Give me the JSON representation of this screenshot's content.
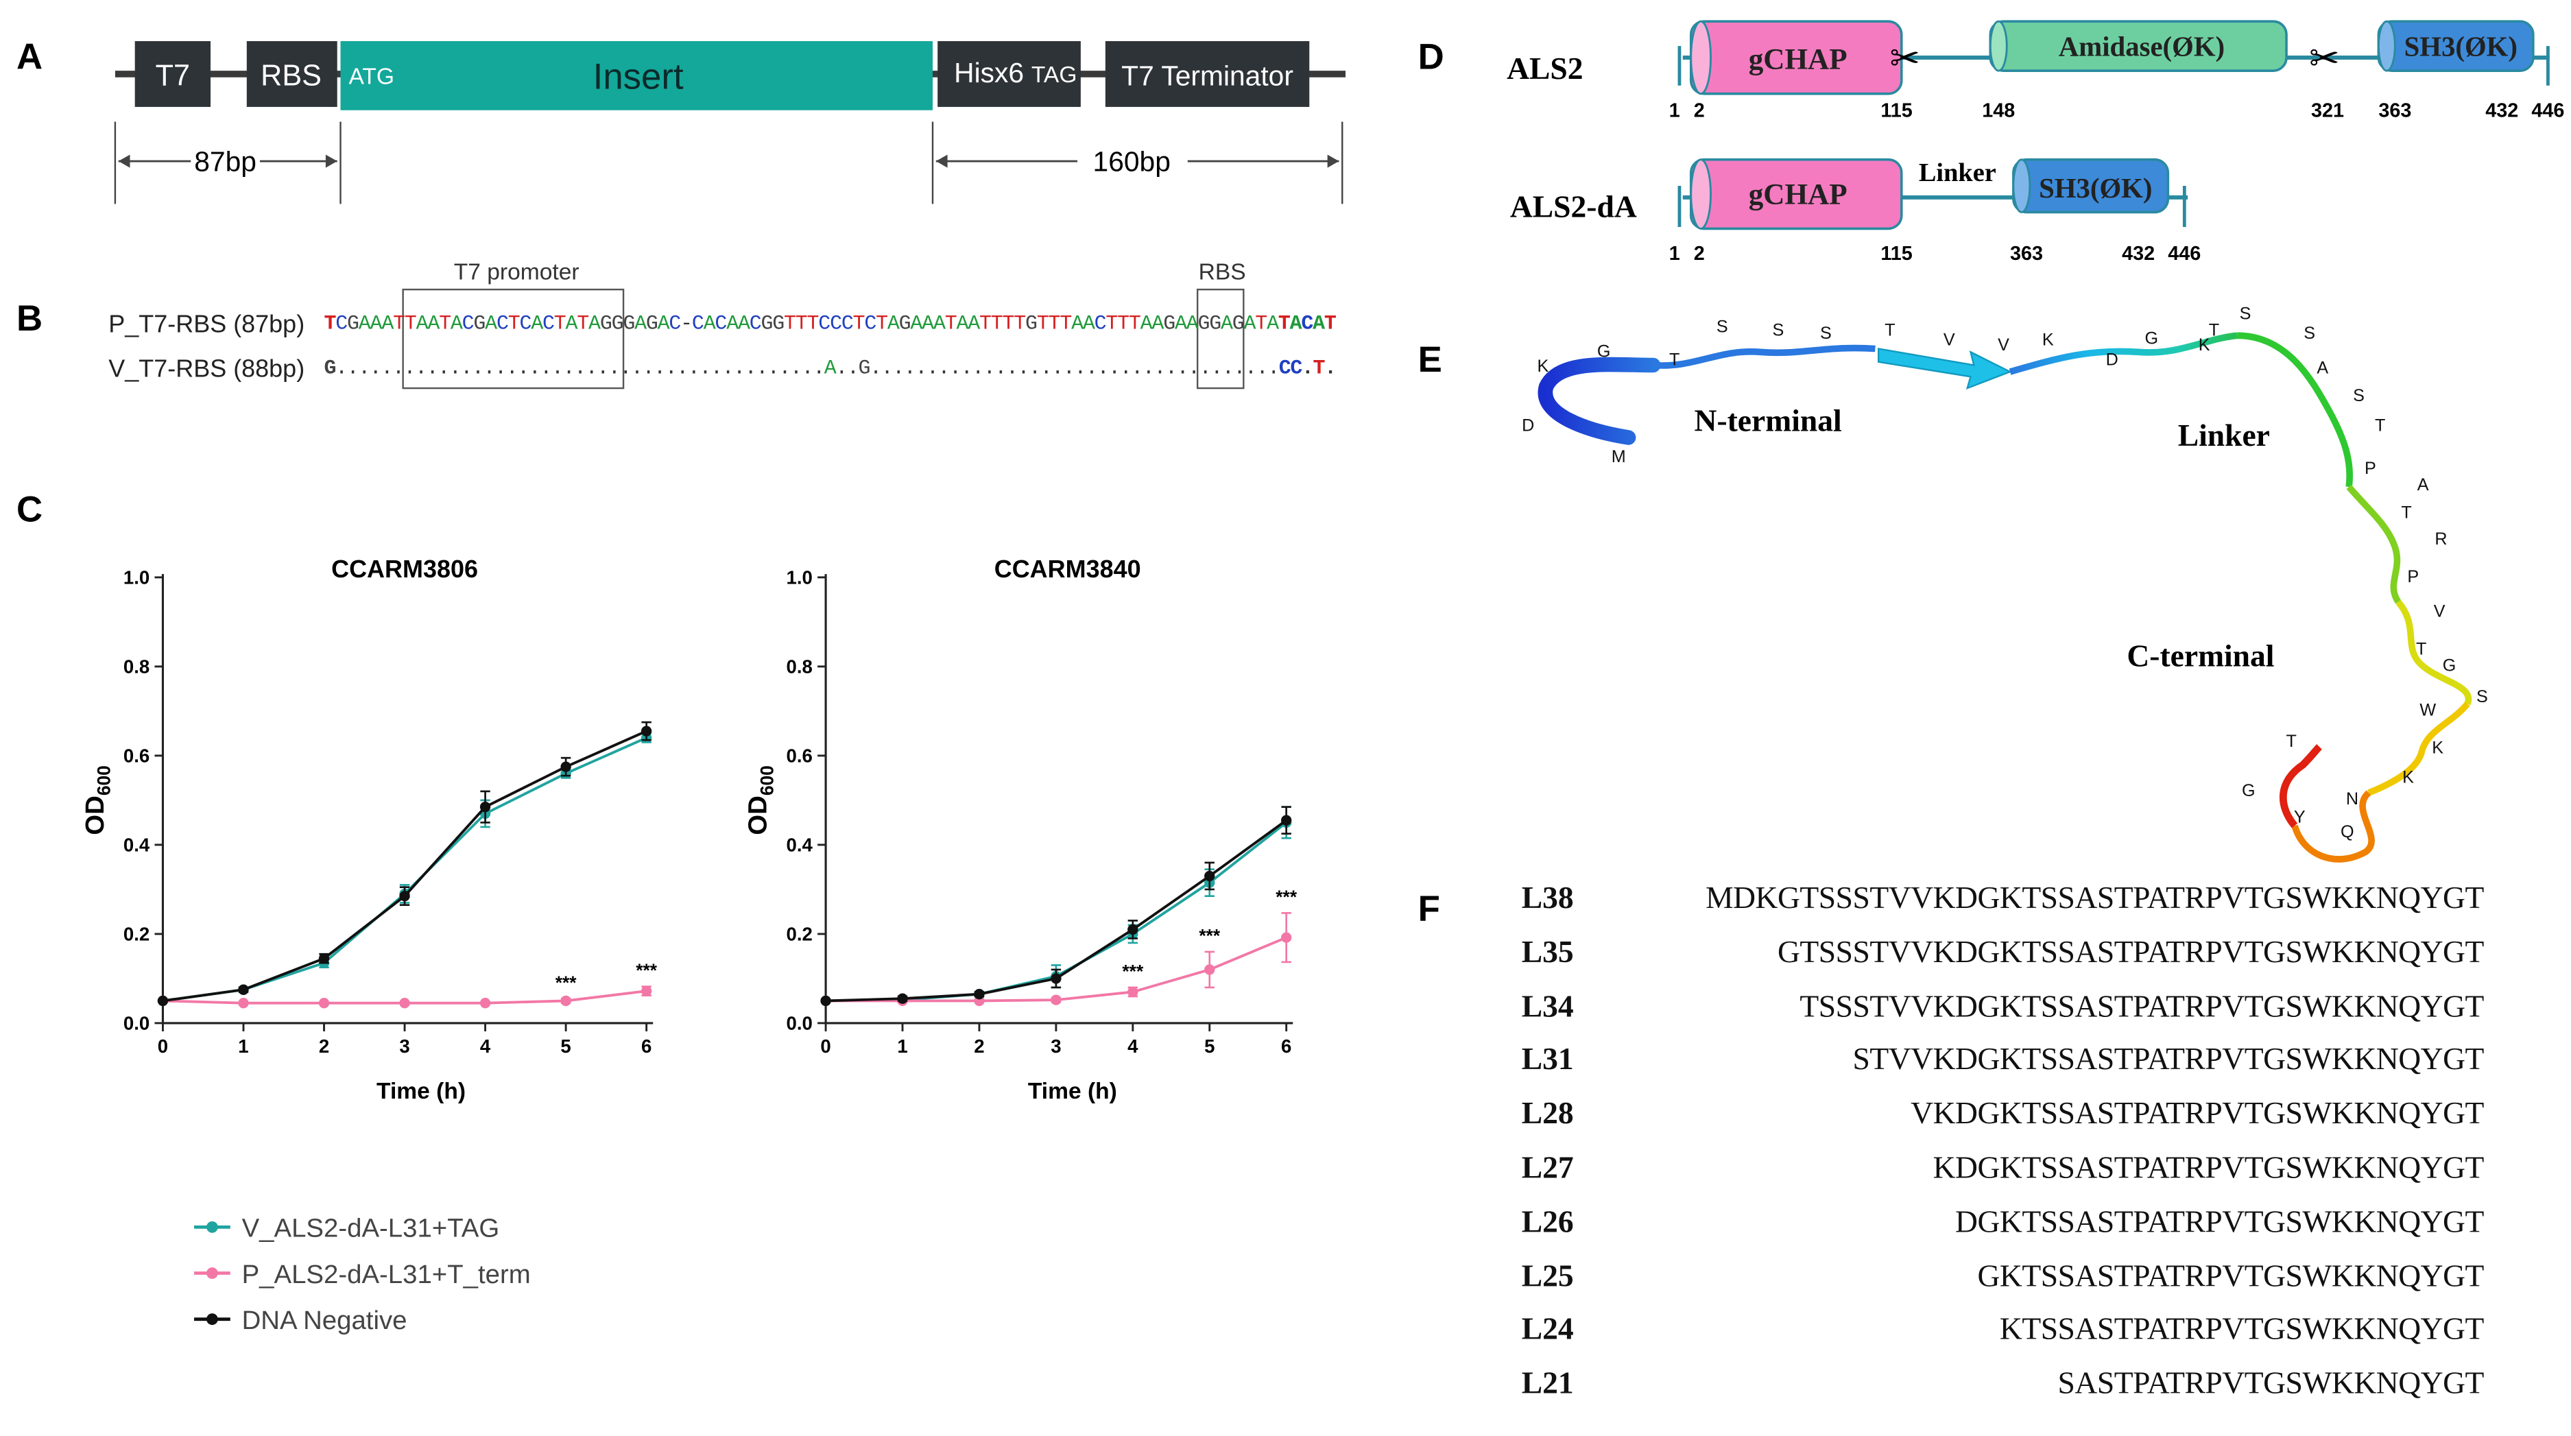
{
  "panels": {
    "A": {
      "label": "A",
      "segments": [
        "T7",
        "RBS",
        "Insert",
        "Hisx6",
        "T7 Terminator"
      ],
      "start_codon": "ATG",
      "stop_codon": "TAG",
      "dim_left": "87bp",
      "dim_right": "160bp"
    },
    "B": {
      "label": "B",
      "row1_name": "P_T7-RBS (87bp)",
      "row2_name": "V_T7-RBS (88bp)",
      "box1_label": "T7 promoter",
      "box2_label": "RBS",
      "row1_seq": "TCGAAATTAATACGACTCACTATAGGGAGAC-CACAACGGTTTCCCTCTAGAAATAATTTTGTTTAACTTTAAGAAGGAGATATACAT",
      "row2_seq": "G...........................................A..G....................................CC.T."
    },
    "C": {
      "label": "C",
      "legend": [
        {
          "name": "V_ALS2-dA-L31+TAG",
          "color": "#20a4a0"
        },
        {
          "name": "P_ALS2-dA-L31+T_term",
          "color": "#f277a6"
        },
        {
          "name": "DNA Negative",
          "color": "#111111"
        }
      ]
    },
    "D": {
      "label": "D",
      "row1_name": "ALS2",
      "row2_name": "ALS2-dA",
      "domains": {
        "gchap": "gCHAP",
        "amidase": "Amidase(ØK)",
        "sh3": "SH3(ØK)",
        "linker": "Linker"
      },
      "row1_positions": [
        "1",
        "2",
        "115",
        "148",
        "321",
        "363",
        "432",
        "446"
      ],
      "row2_positions": [
        "1",
        "2",
        "115",
        "363",
        "432",
        "446"
      ]
    },
    "E": {
      "label": "E",
      "n_terminal": "N-terminal",
      "linker": "Linker",
      "c_terminal": "C-terminal",
      "residues": [
        "M",
        "D",
        "K",
        "G",
        "T",
        "S",
        "S",
        "S",
        "T",
        "V",
        "V",
        "K",
        "D",
        "G",
        "K",
        "T",
        "S",
        "S",
        "A",
        "S",
        "T",
        "P",
        "A",
        "T",
        "R",
        "P",
        "V",
        "T",
        "G",
        "S",
        "W",
        "K",
        "K",
        "N",
        "Q",
        "Y",
        "G",
        "T"
      ]
    },
    "F": {
      "label": "F",
      "rows": [
        {
          "name": "L38",
          "seq": "MDKGTSSSTVVKDGKTSSASTPATRPVTGSWKKNQYGT"
        },
        {
          "name": "L35",
          "seq": "GTSSSTVVKDGKTSSASTPATRPVTGSWKKNQYGT"
        },
        {
          "name": "L34",
          "seq": "TSSSTVVKDGKTSSASTPATRPVTGSWKKNQYGT"
        },
        {
          "name": "L31",
          "seq": "STVVKDGKTSSASTPATRPVTGSWKKNQYGT"
        },
        {
          "name": "L28",
          "seq": "VKDGKTSSASTPATRPVTGSWKKNQYGT"
        },
        {
          "name": "L27",
          "seq": "KDGKTSSASTPATRPVTGSWKKNQYGT"
        },
        {
          "name": "L26",
          "seq": "DGKTSSASTPATRPVTGSWKKNQYGT"
        },
        {
          "name": "L25",
          "seq": "GKTSSASTPATRPVTGSWKKNQYGT"
        },
        {
          "name": "L24",
          "seq": "KTSSASTPATRPVTGSWKKNQYGT"
        },
        {
          "name": "L21",
          "seq": "SASTPATRPVTGSWKKNQYGT"
        }
      ]
    }
  },
  "chart_data": [
    {
      "type": "line",
      "title": "CCARM3806",
      "xlabel": "Time (h)",
      "ylabel": "OD600",
      "x": [
        0,
        1,
        2,
        3,
        4,
        5,
        6
      ],
      "xlim": [
        0,
        6
      ],
      "ylim": [
        0,
        1.0
      ],
      "yticks": [
        "0.0",
        "0.2",
        "0.4",
        "0.6",
        "0.8",
        "1.0"
      ],
      "series": [
        {
          "name": "V_ALS2-dA-L31+TAG",
          "color": "#20a4a0",
          "values": [
            0.05,
            0.075,
            0.135,
            0.29,
            0.47,
            0.56,
            0.64
          ],
          "err": [
            0,
            0.005,
            0.01,
            0.02,
            0.03,
            0.01,
            0.01
          ]
        },
        {
          "name": "P_ALS2-dA-L31+T_term",
          "color": "#f277a6",
          "values": [
            0.05,
            0.045,
            0.045,
            0.045,
            0.045,
            0.05,
            0.072
          ],
          "err": [
            0,
            0,
            0,
            0,
            0,
            0.005,
            0.01
          ]
        },
        {
          "name": "DNA Negative",
          "color": "#111111",
          "values": [
            0.05,
            0.075,
            0.145,
            0.285,
            0.485,
            0.575,
            0.655
          ],
          "err": [
            0,
            0.005,
            0.01,
            0.02,
            0.035,
            0.02,
            0.02
          ]
        }
      ],
      "annotations": [
        {
          "x": 5,
          "text": "***"
        },
        {
          "x": 6,
          "text": "***"
        }
      ]
    },
    {
      "type": "line",
      "title": "CCARM3840",
      "xlabel": "Time (h)",
      "ylabel": "OD600",
      "x": [
        0,
        1,
        2,
        3,
        4,
        5,
        6
      ],
      "xlim": [
        0,
        6
      ],
      "ylim": [
        0,
        1.0
      ],
      "yticks": [
        "0.0",
        "0.2",
        "0.4",
        "0.6",
        "0.8",
        "1.0"
      ],
      "series": [
        {
          "name": "V_ALS2-dA-L31+TAG",
          "color": "#20a4a0",
          "values": [
            0.05,
            0.052,
            0.065,
            0.105,
            0.2,
            0.315,
            0.45
          ],
          "err": [
            0,
            0.005,
            0.005,
            0.025,
            0.02,
            0.03,
            0.035
          ]
        },
        {
          "name": "P_ALS2-dA-L31+T_term",
          "color": "#f277a6",
          "values": [
            0.05,
            0.05,
            0.05,
            0.052,
            0.07,
            0.12,
            0.192
          ],
          "err": [
            0,
            0,
            0,
            0.005,
            0.01,
            0.04,
            0.055
          ]
        },
        {
          "name": "DNA Negative",
          "color": "#111111",
          "values": [
            0.05,
            0.055,
            0.065,
            0.1,
            0.21,
            0.33,
            0.455
          ],
          "err": [
            0,
            0.005,
            0.005,
            0.02,
            0.02,
            0.03,
            0.03
          ]
        }
      ],
      "annotations": [
        {
          "x": 4,
          "text": "***"
        },
        {
          "x": 5,
          "text": "***"
        },
        {
          "x": 6,
          "text": "***"
        }
      ]
    }
  ]
}
